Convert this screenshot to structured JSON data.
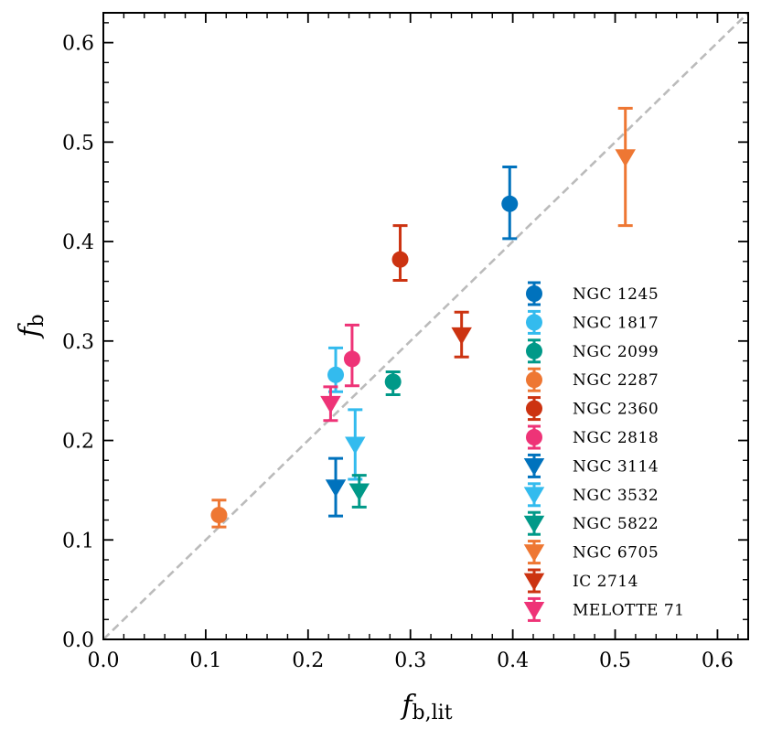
{
  "chart_data": {
    "type": "scatter",
    "title": "",
    "xlabel": {
      "main": "f",
      "sub": "b,lit"
    },
    "ylabel": {
      "main": "f",
      "sub": "b"
    },
    "xlim": [
      0.0,
      0.63
    ],
    "ylim": [
      0.0,
      0.63
    ],
    "xticks": [
      "0.0",
      "0.1",
      "0.2",
      "0.3",
      "0.4",
      "0.5",
      "0.6"
    ],
    "yticks": [
      "0.0",
      "0.1",
      "0.2",
      "0.3",
      "0.4",
      "0.5",
      "0.6"
    ],
    "reference_line": {
      "style": "dashed",
      "color": "#bbbbbb",
      "from": [
        0,
        0
      ],
      "to": [
        0.63,
        0.63
      ]
    },
    "legend_position": "lower-right",
    "series": [
      {
        "name": "NGC 1245",
        "marker": "circle",
        "color": "#0072bd",
        "x": 0.397,
        "y": 0.438,
        "err_low": 0.035,
        "err_high": 0.037
      },
      {
        "name": "NGC 1817",
        "marker": "circle",
        "color": "#33bbee",
        "x": 0.227,
        "y": 0.266,
        "err_low": 0.017,
        "err_high": 0.027
      },
      {
        "name": "NGC 2099",
        "marker": "circle",
        "color": "#009988",
        "x": 0.283,
        "y": 0.259,
        "err_low": 0.013,
        "err_high": 0.01
      },
      {
        "name": "NGC 2287",
        "marker": "circle",
        "color": "#ee7733",
        "x": 0.113,
        "y": 0.125,
        "err_low": 0.012,
        "err_high": 0.015
      },
      {
        "name": "NGC 2360",
        "marker": "circle",
        "color": "#cc3311",
        "x": 0.29,
        "y": 0.382,
        "err_low": 0.021,
        "err_high": 0.034
      },
      {
        "name": "NGC 2818",
        "marker": "circle",
        "color": "#ee3377",
        "x": 0.243,
        "y": 0.282,
        "err_low": 0.027,
        "err_high": 0.034
      },
      {
        "name": "NGC 3114",
        "marker": "triangle-down",
        "color": "#0072bd",
        "x": 0.227,
        "y": 0.153,
        "err_low": 0.029,
        "err_high": 0.029
      },
      {
        "name": "NGC 3532",
        "marker": "triangle-down",
        "color": "#33bbee",
        "x": 0.246,
        "y": 0.196,
        "err_low": 0.035,
        "err_high": 0.035
      },
      {
        "name": "NGC 5822",
        "marker": "triangle-down",
        "color": "#009988",
        "x": 0.25,
        "y": 0.149,
        "err_low": 0.016,
        "err_high": 0.016
      },
      {
        "name": "NGC 6705",
        "marker": "triangle-down",
        "color": "#ee7733",
        "x": 0.51,
        "y": 0.485,
        "err_low": 0.069,
        "err_high": 0.049
      },
      {
        "name": "IC 2714",
        "marker": "triangle-down",
        "color": "#cc3311",
        "x": 0.35,
        "y": 0.306,
        "err_low": 0.022,
        "err_high": 0.023
      },
      {
        "name": "MELOTTE 71",
        "marker": "triangle-down",
        "color": "#ee3377",
        "x": 0.222,
        "y": 0.237,
        "err_low": 0.017,
        "err_high": 0.017
      }
    ]
  }
}
